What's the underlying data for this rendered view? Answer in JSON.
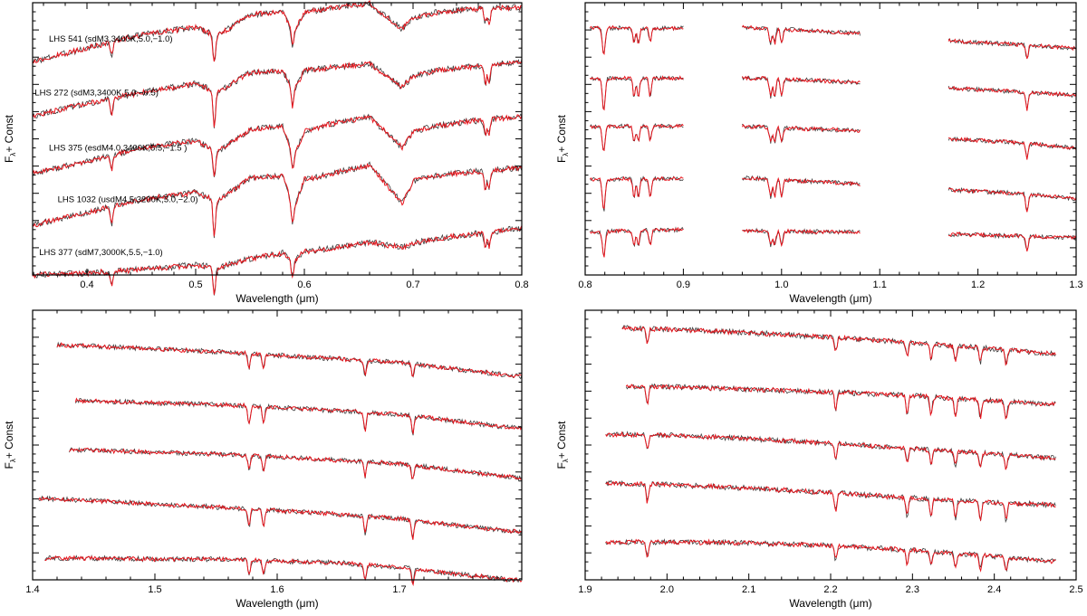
{
  "colors": {
    "observed": "#3a3a3a",
    "model": "#e8141c",
    "axis": "#000000"
  },
  "chart_data": [
    {
      "id": "panel-optical",
      "type": "line",
      "title": "",
      "xlabel": "Wavelength (μm)",
      "xlabel_text": "Wavelength (",
      "xlabel_unit": "μm",
      "xlabel_close": ")",
      "ylabel_main": "F",
      "ylabel_sub": "λ",
      "ylabel_tail": "+ Const",
      "xlim": [
        0.35,
        0.8
      ],
      "ylim": [
        0,
        30
      ],
      "xticks": [
        0.4,
        0.5,
        0.6,
        0.7,
        0.8
      ],
      "xtick_labels": [
        "0.4",
        "0.5",
        "0.6",
        "0.7",
        "0.8"
      ],
      "series_labels": [
        "LHS 541 (sdM3,3400K,5.0,−1.0)",
        "LHS 272 (sdM3,3400K,5.0,−0.5)",
        "LHS 375 (esdM4.0,3400K,5.5,−1.5 )",
        "LHS 1032 (usdM4.5,3200K,5.0,−2.0)",
        "LHS 377 (sdM7,3000K,5.5,−1.0)"
      ],
      "label_pos": [
        [
          0.365,
          25.7
        ],
        [
          0.352,
          19.8
        ],
        [
          0.365,
          13.7
        ],
        [
          0.373,
          8.0
        ],
        [
          0.356,
          2.2
        ]
      ],
      "offsets": [
        23.5,
        17.5,
        11.2,
        5.5,
        0.0
      ],
      "segments": [
        [
          0.35,
          0.8
        ]
      ],
      "anchors_x": [
        0.35,
        0.4,
        0.45,
        0.5,
        0.52,
        0.55,
        0.58,
        0.59,
        0.6,
        0.63,
        0.66,
        0.69,
        0.7,
        0.72,
        0.75,
        0.8
      ],
      "shapes": [
        [
          0.0,
          1.5,
          3.0,
          3.8,
          2.8,
          5.2,
          5.5,
          3.2,
          5.4,
          6.0,
          6.4,
          3.6,
          4.8,
          5.4,
          5.8,
          6.0
        ],
        [
          0.0,
          1.4,
          2.6,
          3.6,
          2.6,
          4.8,
          5.0,
          2.8,
          5.0,
          5.4,
          5.8,
          3.2,
          4.4,
          5.0,
          5.4,
          6.0
        ],
        [
          0.0,
          1.3,
          2.8,
          3.6,
          2.4,
          4.8,
          5.2,
          1.8,
          4.6,
          5.6,
          6.2,
          2.8,
          4.6,
          5.2,
          5.7,
          6.3
        ],
        [
          0.0,
          1.4,
          2.8,
          3.6,
          2.6,
          5.2,
          5.4,
          1.8,
          5.0,
          5.8,
          6.6,
          2.4,
          4.8,
          5.4,
          5.8,
          6.3
        ],
        [
          0.0,
          0.2,
          0.6,
          1.1,
          0.8,
          1.8,
          2.4,
          1.4,
          2.6,
          3.0,
          3.6,
          3.0,
          3.5,
          4.0,
          4.4,
          5.2
        ]
      ],
      "lines_nm": [
        0.589,
        0.7665,
        0.77,
        0.4227,
        0.5169,
        0.5173
      ],
      "noise": 0.35
    },
    {
      "id": "panel-nearir-1",
      "type": "line",
      "title": "",
      "xlabel": "Wavelength (μm)",
      "xlabel_text": "Wavelength (",
      "xlabel_unit": "μm",
      "xlabel_close": ")",
      "ylabel_main": "F",
      "ylabel_sub": "λ",
      "ylabel_tail": "+ Const",
      "xlim": [
        0.8,
        1.3
      ],
      "ylim": [
        0,
        30
      ],
      "xticks": [
        0.8,
        0.9,
        1.0,
        1.1,
        1.2,
        1.3
      ],
      "xtick_labels": [
        "0.8",
        "0.9",
        "1.0",
        "1.1",
        "1.2",
        "1.3"
      ],
      "offsets": [
        26.8,
        21.4,
        16.2,
        10.4,
        4.7
      ],
      "segments": [
        [
          0.805,
          0.9
        ],
        [
          0.96,
          1.08
        ],
        [
          1.17,
          1.3
        ]
      ],
      "anchors_x": [
        0.8,
        0.85,
        0.9,
        0.96,
        1.0,
        1.08,
        1.17,
        1.24,
        1.3
      ],
      "shapes": [
        [
          0.4,
          0.4,
          0.4,
          0.5,
          0.3,
          -0.2,
          -1.0,
          -1.4,
          -1.8
        ],
        [
          0.2,
          0.3,
          0.3,
          0.3,
          0.2,
          -0.2,
          -0.8,
          -1.2,
          -1.6
        ],
        [
          0.1,
          0.2,
          0.2,
          0.2,
          0.0,
          -0.3,
          -1.2,
          -1.6,
          -2.2
        ],
        [
          0.1,
          0.2,
          0.2,
          0.3,
          0.1,
          -0.4,
          -1.0,
          -1.4,
          -2.0
        ],
        [
          0.0,
          0.2,
          0.3,
          0.2,
          0.1,
          0.0,
          -0.2,
          -0.4,
          -0.6
        ]
      ],
      "lines_nm": [
        0.8183,
        0.8195,
        0.8498,
        0.8542,
        0.8662,
        0.993,
        0.9888,
        1.0,
        1.25
      ],
      "noise": 0.25
    },
    {
      "id": "panel-h-band",
      "type": "line",
      "title": "",
      "xlabel": "Wavelength (μm)",
      "xlabel_text": "Wavelength (",
      "xlabel_unit": "μm",
      "xlabel_close": ")",
      "ylabel_main": "F",
      "ylabel_sub": "λ",
      "ylabel_tail": "+ Const",
      "xlim": [
        1.4,
        1.8
      ],
      "ylim": [
        0,
        30
      ],
      "xticks": [
        1.4,
        1.5,
        1.6,
        1.7
      ],
      "xtick_labels": [
        "1.4",
        "1.5",
        "1.6",
        "1.7"
      ],
      "offsets": [
        24.0,
        18.2,
        12.7,
        7.2,
        1.5
      ],
      "segments": [
        [
          1.42,
          1.8
        ],
        [
          1.435,
          1.8
        ],
        [
          1.43,
          1.8
        ],
        [
          1.405,
          1.8
        ],
        [
          1.41,
          1.8
        ]
      ],
      "anchors_x": [
        1.4,
        1.45,
        1.5,
        1.55,
        1.6,
        1.65,
        1.7,
        1.75,
        1.8
      ],
      "shapes": [
        [
          2.2,
          2.0,
          1.7,
          1.4,
          1.0,
          0.6,
          0.2,
          -0.6,
          -1.4
        ],
        [
          1.8,
          1.7,
          1.5,
          1.3,
          1.0,
          0.6,
          0.2,
          -0.6,
          -1.4
        ],
        [
          1.8,
          1.7,
          1.5,
          1.3,
          1.0,
          0.6,
          0.2,
          -0.6,
          -1.4
        ],
        [
          1.9,
          1.6,
          1.2,
          0.9,
          0.5,
          0.1,
          -0.4,
          -1.2,
          -1.9
        ],
        [
          0.9,
          0.9,
          0.8,
          0.8,
          0.6,
          0.4,
          -0.1,
          -0.9,
          -1.6
        ]
      ],
      "lines_nm": [
        1.5888,
        1.6719,
        1.7109,
        1.577
      ],
      "noise": 0.28
    },
    {
      "id": "panel-k-band",
      "type": "line",
      "title": "",
      "xlabel": "Wavelength (μm)",
      "xlabel_text": "Wavelength (",
      "xlabel_unit": "μm",
      "xlabel_close": ")",
      "ylabel_main": "F",
      "ylabel_sub": "λ",
      "ylabel_tail": "+ Const",
      "xlim": [
        1.9,
        2.5
      ],
      "ylim": [
        0,
        30
      ],
      "xticks": [
        1.9,
        2.0,
        2.1,
        2.2,
        2.3,
        2.4,
        2.5
      ],
      "xtick_labels": [
        "1.9",
        "2.0",
        "2.1",
        "2.2",
        "2.3",
        "2.4",
        "2.5"
      ],
      "offsets": [
        24.5,
        19.0,
        13.2,
        7.8,
        1.6
      ],
      "segments": [
        [
          1.945,
          2.475
        ],
        [
          1.95,
          2.475
        ],
        [
          1.925,
          2.475
        ],
        [
          1.925,
          2.475
        ],
        [
          1.925,
          2.475
        ]
      ],
      "anchors_x": [
        1.9,
        2.0,
        2.1,
        2.2,
        2.3,
        2.4,
        2.48
      ],
      "shapes": [
        [
          3.6,
          3.4,
          3.0,
          2.5,
          1.9,
          1.2,
          0.6
        ],
        [
          2.6,
          2.5,
          2.2,
          1.9,
          1.5,
          0.9,
          0.5
        ],
        [
          3.0,
          2.9,
          2.5,
          2.0,
          1.4,
          0.8,
          0.3
        ],
        [
          3.0,
          2.8,
          2.4,
          1.9,
          1.3,
          0.8,
          0.5
        ],
        [
          2.6,
          2.6,
          2.5,
          2.2,
          1.7,
          1.0,
          0.4
        ]
      ],
      "lines_nm": [
        1.976,
        2.2062,
        2.2935,
        2.3227,
        2.3525,
        2.383,
        2.4145
      ],
      "noise": 0.3
    }
  ]
}
